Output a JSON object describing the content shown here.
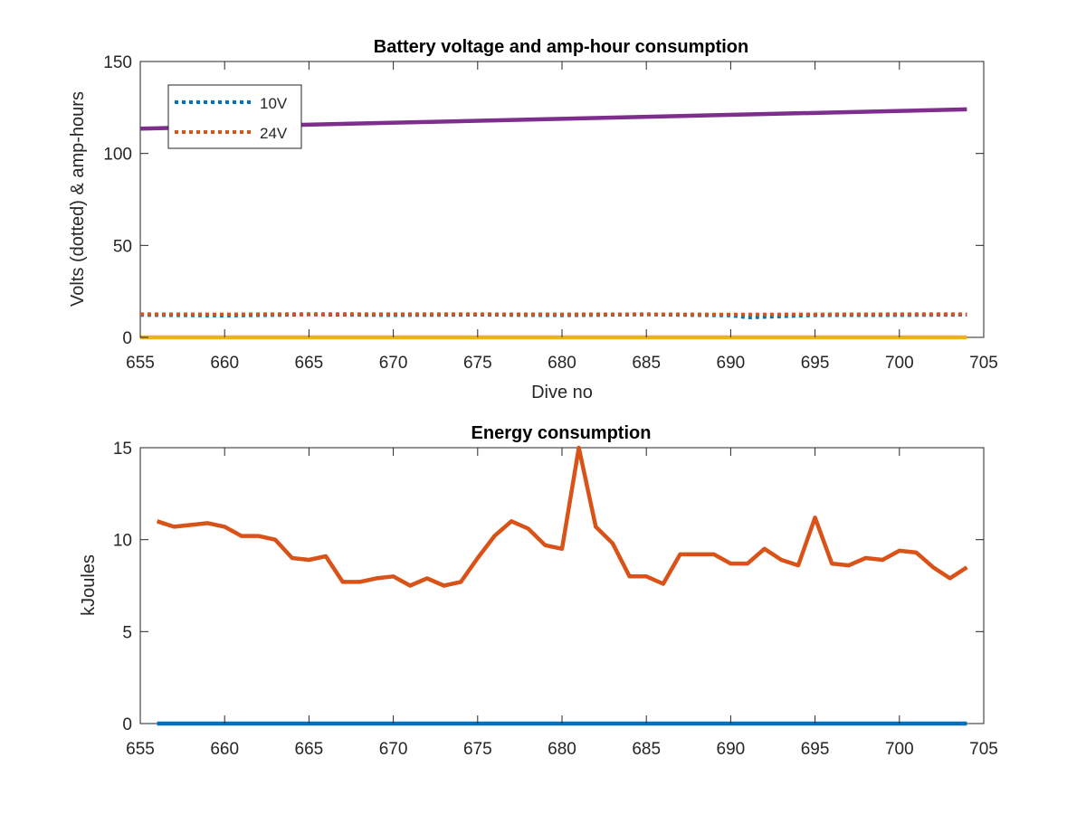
{
  "chart_data": [
    {
      "type": "line",
      "title": "Battery voltage and amp-hour consumption",
      "xlabel": "Dive no",
      "ylabel": "Volts (dotted) & amp-hours",
      "xlim": [
        655,
        705
      ],
      "ylim": [
        0,
        150
      ],
      "xticks": [
        655,
        660,
        665,
        670,
        675,
        680,
        685,
        690,
        695,
        700,
        705
      ],
      "yticks": [
        0,
        50,
        100,
        150
      ],
      "grid": false,
      "legend_position": "top-left",
      "series": [
        {
          "name": "10V",
          "style": "dotted",
          "color": "#0072BD",
          "x": [
            655,
            660,
            665,
            670,
            675,
            680,
            685,
            690,
            691,
            695,
            700,
            704
          ],
          "y": [
            12.2,
            11.8,
            12.4,
            12.1,
            12.3,
            12.0,
            12.4,
            11.9,
            10.8,
            12.0,
            12.1,
            12.3
          ]
        },
        {
          "name": "24V",
          "style": "dotted",
          "color": "#D95319",
          "x": [
            655,
            660,
            665,
            670,
            675,
            680,
            685,
            690,
            695,
            700,
            704
          ],
          "y": [
            12.6,
            12.5,
            12.7,
            12.6,
            12.6,
            12.5,
            12.6,
            12.4,
            12.5,
            12.6,
            12.6
          ]
        },
        {
          "style": "solid",
          "color": "#7E2F8E",
          "x": [
            655,
            704
          ],
          "y": [
            113.5,
            124
          ]
        },
        {
          "style": "solid",
          "color": "#EDB120",
          "x": [
            655,
            704
          ],
          "y": [
            0,
            0
          ]
        }
      ]
    },
    {
      "type": "line",
      "title": "Energy consumption",
      "xlabel": "",
      "ylabel": "kJoules",
      "xlim": [
        655,
        705
      ],
      "ylim": [
        0,
        15
      ],
      "xticks": [
        655,
        660,
        665,
        670,
        675,
        680,
        685,
        690,
        695,
        700,
        705
      ],
      "yticks": [
        0,
        5,
        10,
        15
      ],
      "grid": false,
      "series": [
        {
          "style": "solid",
          "color": "#0072BD",
          "x": [
            656,
            704
          ],
          "y": [
            0,
            0
          ]
        },
        {
          "style": "solid",
          "color": "#D95319",
          "x": [
            656,
            657,
            658,
            659,
            660,
            661,
            662,
            663,
            664,
            665,
            666,
            667,
            668,
            669,
            670,
            671,
            672,
            673,
            674,
            675,
            676,
            677,
            678,
            679,
            680,
            681,
            682,
            683,
            684,
            685,
            686,
            687,
            688,
            689,
            690,
            691,
            692,
            693,
            694,
            695,
            696,
            697,
            698,
            699,
            700,
            701,
            702,
            703,
            704
          ],
          "y": [
            11.0,
            10.7,
            10.8,
            10.9,
            10.7,
            10.2,
            10.2,
            10.0,
            9.0,
            8.9,
            9.1,
            7.7,
            7.7,
            7.9,
            8.0,
            7.5,
            7.9,
            7.5,
            7.7,
            9.0,
            10.2,
            11.0,
            10.6,
            9.7,
            9.5,
            15.0,
            10.7,
            9.8,
            8.0,
            8.0,
            7.6,
            9.2,
            9.2,
            9.2,
            8.7,
            8.7,
            9.5,
            8.9,
            8.6,
            11.2,
            8.7,
            8.6,
            9.0,
            8.9,
            9.4,
            9.3,
            8.5,
            7.9,
            8.5
          ]
        }
      ]
    }
  ]
}
